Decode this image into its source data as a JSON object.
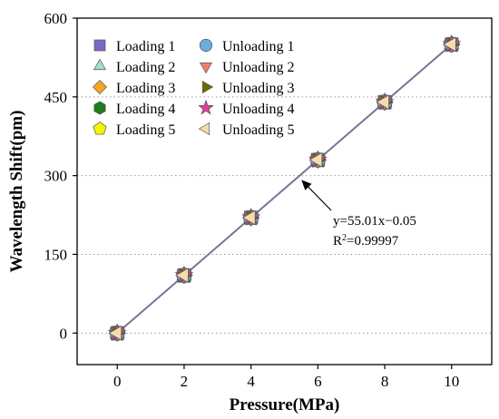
{
  "chart_data": {
    "type": "scatter",
    "xlabel": "Pressure(MPa)",
    "ylabel": "Wavelength Shift(pm)",
    "xlim": [
      -1.2,
      11.2
    ],
    "ylim": [
      -60,
      600
    ],
    "xticks": [
      "0",
      "2",
      "4",
      "6",
      "8",
      "10"
    ],
    "yticks": [
      "0",
      "150",
      "300",
      "450",
      "600"
    ],
    "ygrid": true,
    "legend_position": "top-left",
    "series": [
      {
        "name": "Loading 1",
        "marker": "square",
        "color": "#7b68c8",
        "x": [
          0,
          2,
          4,
          6,
          8,
          10
        ],
        "y": [
          0,
          110,
          220,
          330,
          440,
          550
        ]
      },
      {
        "name": "Loading 2",
        "marker": "triangle-up",
        "color": "#a8dcc8",
        "x": [
          0,
          2,
          4,
          6,
          8,
          10
        ],
        "y": [
          0,
          110,
          220,
          330,
          440,
          550
        ]
      },
      {
        "name": "Loading 3",
        "marker": "diamond",
        "color": "#f5a623",
        "x": [
          0,
          2,
          4,
          6,
          8,
          10
        ],
        "y": [
          0,
          110,
          220,
          330,
          440,
          550
        ]
      },
      {
        "name": "Loading 4",
        "marker": "hexagon",
        "color": "#1e7b1e",
        "x": [
          0,
          2,
          4,
          6,
          8,
          10
        ],
        "y": [
          0,
          110,
          220,
          330,
          440,
          550
        ]
      },
      {
        "name": "Loading 5",
        "marker": "pentagon",
        "color": "#f5f500",
        "x": [
          0,
          2,
          4,
          6,
          8,
          10
        ],
        "y": [
          0,
          110,
          220,
          330,
          440,
          550
        ]
      },
      {
        "name": "Unloading 1",
        "marker": "circle",
        "color": "#6aaedc",
        "x": [
          0,
          2,
          4,
          6,
          8,
          10
        ],
        "y": [
          0,
          110,
          220,
          330,
          440,
          550
        ]
      },
      {
        "name": "Unloading 2",
        "marker": "triangle-down",
        "color": "#f08070",
        "x": [
          0,
          2,
          4,
          6,
          8,
          10
        ],
        "y": [
          0,
          110,
          220,
          330,
          440,
          550
        ]
      },
      {
        "name": "Unloading 3",
        "marker": "triangle-right",
        "color": "#6b6b00",
        "x": [
          0,
          2,
          4,
          6,
          8,
          10
        ],
        "y": [
          0,
          110,
          220,
          330,
          440,
          550
        ]
      },
      {
        "name": "Unloading 4",
        "marker": "star",
        "color": "#e0409c",
        "x": [
          0,
          2,
          4,
          6,
          8,
          10
        ],
        "y": [
          0,
          110,
          220,
          330,
          440,
          550
        ]
      },
      {
        "name": "Unloading 5",
        "marker": "triangle-left",
        "color": "#f5dcaa",
        "x": [
          0,
          2,
          4,
          6,
          8,
          10
        ],
        "y": [
          0,
          110,
          220,
          330,
          440,
          550
        ]
      }
    ],
    "fit": {
      "slope": 55.01,
      "intercept": -0.05,
      "color": "#7a7296",
      "equation": "y=55.01x−0.05",
      "r2_prefix": "R",
      "r2_sup": "2",
      "r2_suffix": "=0.99997",
      "arrow_target_x": 5.4
    }
  }
}
